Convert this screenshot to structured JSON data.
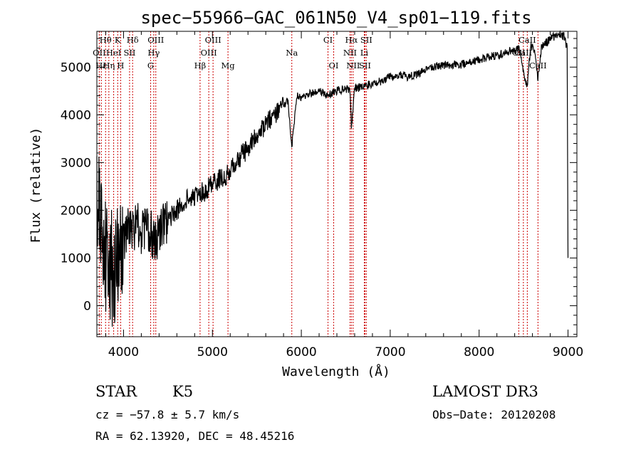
{
  "chart_data": {
    "type": "line",
    "title": "spec−55966−GAC_061N50_V4_sp01−119.fits",
    "xlabel": "Wavelength (Å)",
    "ylabel": "Flux (relative)",
    "xlim": [
      3700,
      9100
    ],
    "ylim": [
      -650,
      5750
    ],
    "xticks": [
      4000,
      5000,
      6000,
      7000,
      8000,
      9000
    ],
    "yticks": [
      0,
      1000,
      2000,
      3000,
      4000,
      5000
    ],
    "grid": false,
    "series": [
      {
        "name": "spectrum",
        "x": [
          3700,
          3750,
          3800,
          3850,
          3900,
          3950,
          4000,
          4050,
          4100,
          4150,
          4200,
          4250,
          4300,
          4350,
          4400,
          4500,
          4600,
          4700,
          4800,
          4860,
          4900,
          5000,
          5100,
          5200,
          5300,
          5400,
          5500,
          5600,
          5700,
          5800,
          5850,
          5893,
          5950,
          6000,
          6100,
          6200,
          6300,
          6400,
          6500,
          6550,
          6563,
          6600,
          6700,
          6800,
          6900,
          7000,
          7100,
          7200,
          7300,
          7400,
          7500,
          7600,
          7700,
          7800,
          7900,
          8000,
          8100,
          8200,
          8300,
          8400,
          8450,
          8498,
          8542,
          8580,
          8620,
          8662,
          8700,
          8750,
          8800,
          8850,
          8900,
          8950,
          8990,
          9000
        ],
        "values": [
          2500,
          1500,
          1000,
          900,
          700,
          1000,
          1400,
          1600,
          1500,
          1800,
          1500,
          1600,
          1550,
          1400,
          1500,
          1800,
          2000,
          2200,
          2300,
          2400,
          2350,
          2600,
          2650,
          2800,
          3100,
          3300,
          3550,
          3800,
          4000,
          4200,
          4300,
          3350,
          4400,
          4350,
          4450,
          4500,
          4400,
          4500,
          4550,
          4500,
          3700,
          4550,
          4600,
          4650,
          4700,
          4800,
          4850,
          4800,
          4850,
          4950,
          5000,
          5050,
          5050,
          5050,
          5100,
          5150,
          5200,
          5250,
          5300,
          5350,
          5400,
          4900,
          4600,
          5450,
          5400,
          4750,
          5400,
          5500,
          5600,
          5650,
          5700,
          5650,
          5400,
          1000
        ]
      }
    ],
    "spectral_lines": [
      {
        "name": "Hθ",
        "wavelength": 3798,
        "row": 0
      },
      {
        "name": "K",
        "wavelength": 3934,
        "row": 0
      },
      {
        "name": "Hδ",
        "wavelength": 4102,
        "row": 0
      },
      {
        "name": "OIII",
        "wavelength": 4363,
        "row": 0
      },
      {
        "name": "OIII",
        "wavelength": 5007,
        "row": 0
      },
      {
        "name": "CI",
        "wavelength": 6300,
        "row": 0
      },
      {
        "name": "Hα",
        "wavelength": 6563,
        "row": 0
      },
      {
        "name": "SII",
        "wavelength": 6731,
        "row": 0
      },
      {
        "name": "CaII",
        "wavelength": 8542,
        "row": 0
      },
      {
        "name": "OII",
        "wavelength": 3727,
        "row": 1
      },
      {
        "name": "HeI",
        "wavelength": 3889,
        "row": 1
      },
      {
        "name": "SII",
        "wavelength": 4068,
        "row": 1
      },
      {
        "name": "Hγ",
        "wavelength": 4340,
        "row": 1
      },
      {
        "name": "OIII",
        "wavelength": 4959,
        "row": 1
      },
      {
        "name": "Na",
        "wavelength": 5893,
        "row": 1
      },
      {
        "name": "NII",
        "wavelength": 6548,
        "row": 1
      },
      {
        "name": "Li",
        "wavelength": 6708,
        "row": 1
      },
      {
        "name": "CaII",
        "wavelength": 8498,
        "row": 1
      },
      {
        "name": "OII",
        "wavelength": 8446,
        "row": 1
      },
      {
        "name": "Hε",
        "wavelength": 3750,
        "row": 2
      },
      {
        "name": "Hη",
        "wavelength": 3835,
        "row": 2
      },
      {
        "name": "H",
        "wavelength": 3968,
        "row": 2
      },
      {
        "name": "G",
        "wavelength": 4305,
        "row": 2
      },
      {
        "name": "Hβ",
        "wavelength": 4861,
        "row": 2
      },
      {
        "name": "Mg",
        "wavelength": 5175,
        "row": 2
      },
      {
        "name": "OI",
        "wavelength": 6364,
        "row": 2
      },
      {
        "name": "NII",
        "wavelength": 6583,
        "row": 2
      },
      {
        "name": "SII",
        "wavelength": 6716,
        "row": 2
      },
      {
        "name": "CaII",
        "wavelength": 8662,
        "row": 2
      }
    ]
  },
  "info": {
    "object_class": "STAR",
    "subclass": "K5",
    "survey": "LAMOST DR3",
    "redshift": "cz = −57.8 ± 5.7 km/s",
    "obs_date": "Obs−Date: 20120208",
    "coords": "RA =  62.13920, DEC =  48.45216"
  },
  "colors": {
    "spectrum": "#000000",
    "line_markers": "#cc0000"
  }
}
